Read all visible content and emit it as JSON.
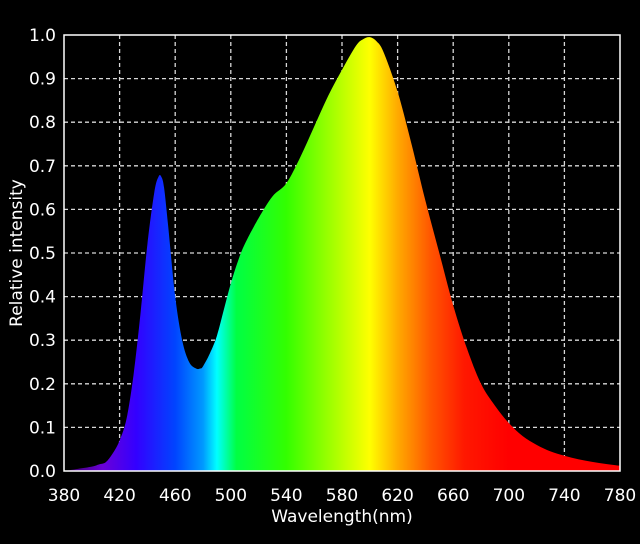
{
  "chart_data": {
    "type": "area",
    "title": "",
    "xlabel": "Wavelength(nm)",
    "ylabel": "Relative intensity",
    "xlim": [
      380,
      780
    ],
    "ylim": [
      0,
      1.0
    ],
    "x_ticks": [
      380,
      420,
      460,
      500,
      540,
      580,
      620,
      660,
      700,
      740,
      780
    ],
    "y_ticks": [
      "0.0",
      "0.1",
      "0.2",
      "0.3",
      "0.4",
      "0.5",
      "0.6",
      "0.7",
      "0.8",
      "0.9",
      "1.0"
    ],
    "grid": true,
    "fill": "wavelength-spectrum-gradient",
    "background": "#000000",
    "series": [
      {
        "x": [
          380,
          390,
          400,
          405,
          410,
          415,
          420,
          425,
          430,
          435,
          440,
          445,
          448,
          450,
          452,
          455,
          460,
          465,
          470,
          475,
          478,
          480,
          485,
          490,
          495,
          500,
          505,
          510,
          520,
          530,
          540,
          550,
          560,
          570,
          580,
          590,
          595,
          600,
          605,
          610,
          620,
          630,
          640,
          650,
          660,
          670,
          680,
          690,
          700,
          710,
          720,
          730,
          740,
          750,
          760,
          770,
          780
        ],
        "y": [
          0.0,
          0.005,
          0.01,
          0.015,
          0.02,
          0.04,
          0.07,
          0.12,
          0.22,
          0.36,
          0.52,
          0.64,
          0.675,
          0.675,
          0.65,
          0.56,
          0.4,
          0.3,
          0.25,
          0.235,
          0.235,
          0.24,
          0.27,
          0.31,
          0.37,
          0.43,
          0.48,
          0.52,
          0.58,
          0.63,
          0.66,
          0.72,
          0.79,
          0.86,
          0.92,
          0.975,
          0.99,
          0.995,
          0.985,
          0.96,
          0.87,
          0.75,
          0.62,
          0.5,
          0.38,
          0.28,
          0.2,
          0.15,
          0.11,
          0.08,
          0.06,
          0.045,
          0.035,
          0.027,
          0.021,
          0.016,
          0.012
        ]
      }
    ]
  }
}
